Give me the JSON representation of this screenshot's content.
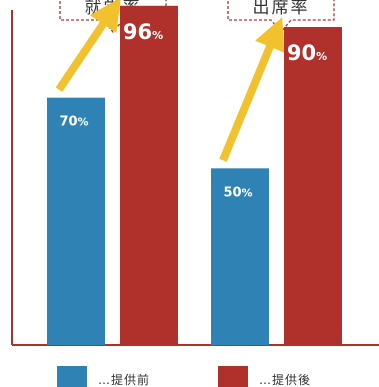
{
  "chart_data": {
    "type": "bar",
    "categories": [
      "就学率",
      "出席率"
    ],
    "series": [
      {
        "name": "提供前",
        "values": [
          70,
          50
        ],
        "labels": [
          "70%",
          "50%"
        ],
        "color": "#2e82b4"
      },
      {
        "name": "提供後",
        "values": [
          96,
          90
        ],
        "labels": [
          "96%",
          "90%"
        ],
        "color": "#b0302c"
      }
    ],
    "ylim": [
      0,
      100
    ],
    "grid": false,
    "legend_position": "bottom",
    "legend_prefix": "…",
    "axis_color": "#b0302c",
    "arrow_color": "#f2c12e",
    "callout_border_color": "#b0302c"
  }
}
